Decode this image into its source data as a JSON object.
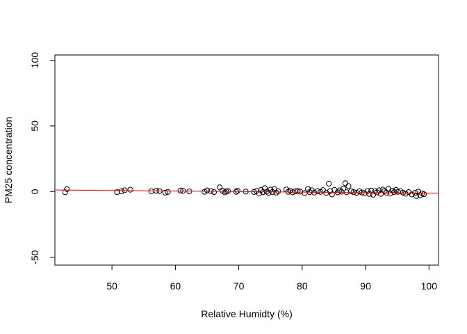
{
  "chart_data": {
    "type": "scatter",
    "title": "",
    "xlabel": "Relative Humidty (%)",
    "ylabel": "PM25 concentration",
    "xlim": [
      41,
      101.5
    ],
    "ylim": [
      -56,
      104
    ],
    "xticks": [
      50,
      60,
      70,
      80,
      90,
      100
    ],
    "yticks": [
      -50,
      0,
      50,
      100
    ],
    "grid": false,
    "legend": "none",
    "point_color": "#000000",
    "fit_line": {
      "color": "#ff0000",
      "x": [
        41,
        101.5
      ],
      "y": [
        1.2,
        -1.3
      ]
    },
    "x": [
      42.6,
      42.9,
      50.8,
      51.5,
      52.0,
      52.9,
      56.2,
      57.0,
      57.5,
      58.4,
      58.8,
      60.8,
      61.2,
      62.2,
      64.6,
      65.0,
      65.6,
      66.1,
      67.0,
      67.4,
      67.8,
      68.0,
      68.3,
      69.6,
      69.8,
      71.1,
      72.4,
      72.8,
      73.2,
      73.5,
      73.8,
      74.1,
      74.4,
      74.7,
      75.0,
      75.3,
      75.6,
      75.9,
      76.2,
      77.5,
      77.8,
      78.1,
      78.5,
      78.9,
      79.3,
      79.7,
      80.4,
      80.9,
      81.2,
      81.5,
      81.9,
      82.4,
      82.9,
      83.3,
      83.8,
      84.2,
      84.4,
      84.7,
      85.1,
      85.6,
      85.9,
      86.2,
      86.5,
      86.8,
      87.0,
      87.3,
      87.7,
      88.1,
      88.6,
      89.0,
      89.4,
      89.8,
      90.3,
      90.6,
      90.9,
      91.2,
      91.5,
      91.8,
      92.1,
      92.4,
      92.7,
      93.0,
      93.3,
      93.6,
      93.9,
      94.2,
      94.5,
      94.8,
      95.1,
      95.5,
      95.9,
      96.3,
      96.8,
      97.3,
      97.8,
      98.0,
      98.3,
      98.6,
      98.9,
      99.2
    ],
    "y": [
      -0.5,
      1.8,
      -0.4,
      0.2,
      1.0,
      1.4,
      0.2,
      0.6,
      0.4,
      -0.8,
      -0.3,
      0.8,
      0.5,
      0.1,
      -0.2,
      0.9,
      0.4,
      -0.4,
      3.2,
      0.7,
      -0.6,
      0.2,
      0.4,
      -0.2,
      0.6,
      0.0,
      -0.3,
      0.4,
      -1.5,
      1.2,
      -0.5,
      2.6,
      0.0,
      -1.0,
      1.5,
      -0.3,
      1.9,
      -0.8,
      0.3,
      1.6,
      -0.2,
      0.8,
      -0.6,
      0.2,
      0.5,
      0.0,
      -1.2,
      2.0,
      -0.4,
      1.0,
      -0.8,
      0.3,
      -0.2,
      1.1,
      -1.0,
      6.0,
      0.4,
      -2.2,
      1.3,
      -0.6,
      0.9,
      -0.1,
      2.2,
      6.3,
      -0.5,
      4.2,
      0.2,
      -0.4,
      -1.0,
      0.2,
      -0.7,
      -1.2,
      0.4,
      -1.8,
      0.8,
      -2.4,
      0.2,
      -0.6,
      1.0,
      -1.8,
      1.5,
      0.4,
      -0.9,
      2.0,
      -1.5,
      0.7,
      -0.4,
      1.2,
      -0.2,
      0.3,
      -0.8,
      -1.6,
      -0.4,
      -2.2,
      -1.0,
      -3.4,
      0.0,
      -2.8,
      -1.4,
      -2.0
    ]
  }
}
